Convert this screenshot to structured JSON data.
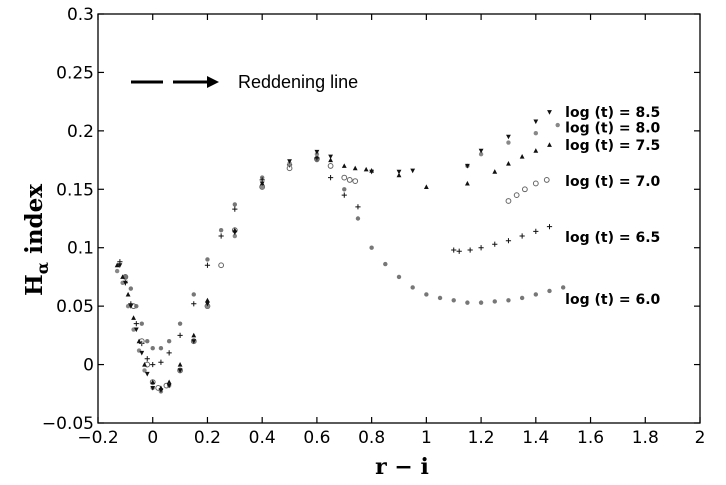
{
  "chart_data": {
    "type": "scatter",
    "title": "",
    "xlabel": "r − i",
    "ylabel_main": "H",
    "ylabel_sub": "α",
    "ylabel_rest": " index",
    "xlim": [
      -0.2,
      2.0
    ],
    "ylim": [
      -0.05,
      0.3
    ],
    "xticks": [
      -0.2,
      0,
      0.2,
      0.4,
      0.6,
      0.8,
      1,
      1.2,
      1.4,
      1.6,
      1.8,
      2
    ],
    "xtick_labels": [
      "−0.2",
      "0",
      "0.2",
      "0.4",
      "0.6",
      "0.8",
      "1",
      "1.2",
      "1.4",
      "1.6",
      "1.8",
      "2"
    ],
    "yticks": [
      -0.05,
      0,
      0.05,
      0.1,
      0.15,
      0.2,
      0.25,
      0.3
    ],
    "ytick_labels": [
      "−0.05",
      "0",
      "0.05",
      "0.1",
      "0.15",
      "0.2",
      "0.25",
      "0.3"
    ],
    "grid": false,
    "legend": {
      "position": "top-left",
      "label": "Reddening line",
      "style": "dashed arrow"
    },
    "colors": {
      "dark": "#111111",
      "mid": "#555555",
      "light": "#888888"
    },
    "series": [
      {
        "name": "log (t) = 6.0",
        "marker": "dot",
        "color": "#777777",
        "label_at": [
          1.5,
          0.056
        ],
        "x": [
          -0.1,
          -0.08,
          -0.06,
          -0.04,
          -0.02,
          0.0,
          0.03,
          0.06,
          0.1,
          0.15,
          0.2,
          0.25,
          0.3,
          0.4,
          0.5,
          0.6,
          0.7,
          0.75,
          0.8,
          0.85,
          0.9,
          0.95,
          1.0,
          1.05,
          1.1,
          1.15,
          1.2,
          1.25,
          1.3,
          1.35,
          1.4,
          1.45,
          1.5
        ],
        "y": [
          0.075,
          0.065,
          0.05,
          0.035,
          0.02,
          0.014,
          0.014,
          0.02,
          0.035,
          0.06,
          0.09,
          0.115,
          0.137,
          0.16,
          0.172,
          0.175,
          0.15,
          0.125,
          0.1,
          0.086,
          0.075,
          0.066,
          0.06,
          0.057,
          0.055,
          0.053,
          0.053,
          0.054,
          0.055,
          0.057,
          0.06,
          0.063,
          0.066
        ]
      },
      {
        "name": "log (t) = 6.5",
        "marker": "plus",
        "color": "#111111",
        "label_at": [
          1.5,
          0.109
        ],
        "x": [
          -0.12,
          -0.1,
          -0.08,
          -0.06,
          -0.04,
          -0.02,
          0.0,
          0.03,
          0.06,
          0.1,
          0.15,
          0.2,
          0.25,
          0.3,
          0.4,
          0.5,
          0.6,
          0.65,
          0.7,
          0.75,
          1.1,
          1.12,
          1.16,
          1.2,
          1.25,
          1.3,
          1.35,
          1.4,
          1.45
        ],
        "y": [
          0.088,
          0.07,
          0.052,
          0.035,
          0.018,
          0.005,
          0.0,
          0.002,
          0.01,
          0.025,
          0.052,
          0.085,
          0.11,
          0.133,
          0.158,
          0.171,
          0.177,
          0.16,
          0.145,
          0.135,
          0.098,
          0.097,
          0.098,
          0.1,
          0.103,
          0.106,
          0.11,
          0.114,
          0.118
        ]
      },
      {
        "name": "log (t) = 7.0",
        "marker": "circle",
        "color": "#666666",
        "label_at": [
          1.5,
          0.157
        ],
        "x": [
          -0.1,
          -0.07,
          -0.04,
          -0.02,
          0.0,
          0.02,
          0.05,
          0.1,
          0.15,
          0.2,
          0.25,
          0.3,
          0.4,
          0.5,
          0.6,
          0.65,
          0.7,
          0.72,
          0.74,
          1.3,
          1.33,
          1.36,
          1.4,
          1.44
        ],
        "y": [
          0.075,
          0.05,
          0.02,
          0.0,
          -0.015,
          -0.02,
          -0.018,
          -0.005,
          0.02,
          0.05,
          0.085,
          0.115,
          0.152,
          0.168,
          0.176,
          0.17,
          0.16,
          0.158,
          0.157,
          0.14,
          0.145,
          0.15,
          0.155,
          0.158
        ]
      },
      {
        "name": "log (t) = 7.5",
        "marker": "triangle",
        "color": "#111111",
        "label_at": [
          1.5,
          0.188
        ],
        "x": [
          -0.13,
          -0.11,
          -0.09,
          -0.07,
          -0.05,
          -0.03,
          0.0,
          0.03,
          0.06,
          0.1,
          0.15,
          0.2,
          0.3,
          0.4,
          0.5,
          0.6,
          0.65,
          0.7,
          0.74,
          0.78,
          0.8,
          0.9,
          1.0,
          1.15,
          1.25,
          1.3,
          1.35,
          1.4,
          1.45
        ],
        "y": [
          0.085,
          0.075,
          0.06,
          0.04,
          0.02,
          0.0,
          -0.015,
          -0.02,
          -0.015,
          0.0,
          0.025,
          0.055,
          0.115,
          0.155,
          0.172,
          0.178,
          0.175,
          0.17,
          0.168,
          0.167,
          0.166,
          0.162,
          0.152,
          0.155,
          0.165,
          0.172,
          0.178,
          0.183,
          0.188
        ]
      },
      {
        "name": "log (t) = 8.0",
        "marker": "dot",
        "color": "#888888",
        "label_at": [
          1.5,
          0.203
        ],
        "x": [
          -0.13,
          -0.11,
          -0.09,
          -0.07,
          -0.05,
          -0.03,
          0.0,
          0.03,
          0.06,
          0.1,
          0.15,
          0.2,
          0.3,
          0.4,
          0.5,
          0.6,
          1.15,
          1.2,
          1.3,
          1.4,
          1.48
        ],
        "y": [
          0.08,
          0.07,
          0.05,
          0.03,
          0.012,
          -0.005,
          -0.02,
          -0.023,
          -0.018,
          -0.005,
          0.02,
          0.05,
          0.11,
          0.152,
          0.172,
          0.18,
          0.17,
          0.18,
          0.19,
          0.198,
          0.205
        ]
      },
      {
        "name": "log (t) = 8.5",
        "marker": "tri_down",
        "color": "#111111",
        "label_at": [
          1.5,
          0.216
        ],
        "x": [
          -0.12,
          -0.1,
          -0.08,
          -0.06,
          -0.04,
          -0.02,
          0.0,
          0.03,
          0.06,
          0.1,
          0.15,
          0.2,
          0.3,
          0.4,
          0.5,
          0.6,
          0.65,
          0.8,
          0.9,
          0.95,
          1.15,
          1.2,
          1.3,
          1.4,
          1.45
        ],
        "y": [
          0.085,
          0.07,
          0.05,
          0.03,
          0.01,
          -0.008,
          -0.02,
          -0.022,
          -0.018,
          -0.005,
          0.02,
          0.052,
          0.113,
          0.155,
          0.174,
          0.182,
          0.178,
          0.165,
          0.165,
          0.166,
          0.17,
          0.183,
          0.195,
          0.208,
          0.216
        ]
      }
    ]
  }
}
